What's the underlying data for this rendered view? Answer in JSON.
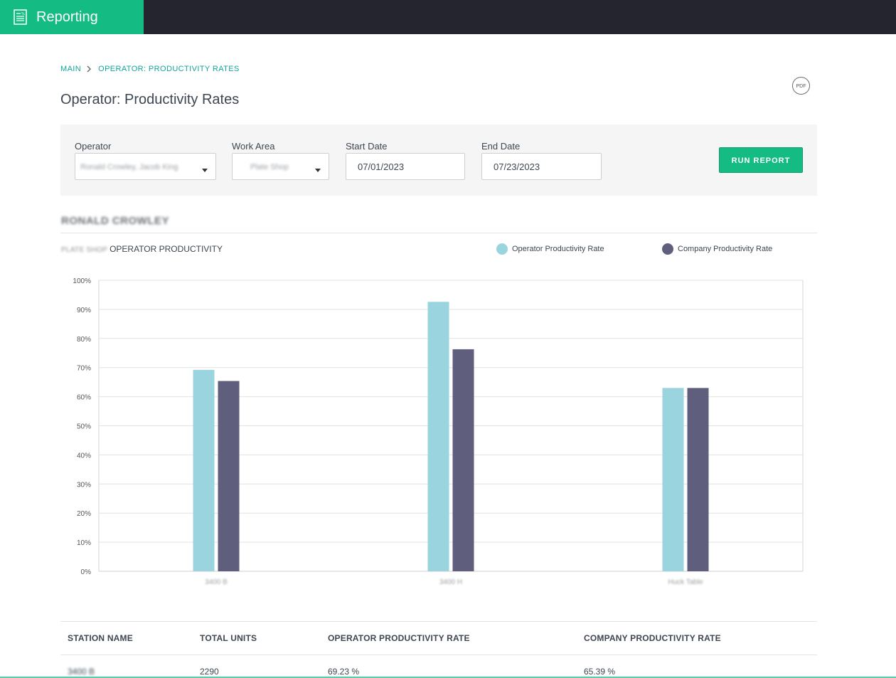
{
  "app": {
    "title": "Reporting",
    "accent": "#14bb82",
    "topbar_color": "#25252f"
  },
  "breadcrumb": {
    "items": [
      "MAIN",
      "OPERATOR: PRODUCTIVITY RATES"
    ]
  },
  "page": {
    "title": "Operator: Productivity Rates",
    "pdf_label": "PDF"
  },
  "filters": {
    "operator": {
      "label": "Operator",
      "value": "Ronald Crowley, Jacob King"
    },
    "work_area": {
      "label": "Work Area",
      "value": "Plate Shop"
    },
    "start_date": {
      "label": "Start Date",
      "value": "07/01/2023"
    },
    "end_date": {
      "label": "End Date",
      "value": "07/23/2023"
    },
    "run_label": "RUN REPORT"
  },
  "report": {
    "operator_name": "RONALD CROWLEY",
    "chart_title_prefix": "PLATE SHOP",
    "chart_title": "OPERATOR PRODUCTIVITY"
  },
  "chart_data": {
    "type": "bar",
    "categories": [
      "3400 B",
      "3400 H",
      "Huck Table"
    ],
    "series": [
      {
        "name": "Operator Productivity Rate",
        "values": [
          69.23,
          92.6,
          63.0
        ],
        "color": "#9ad4de"
      },
      {
        "name": "Company Productivity Rate",
        "values": [
          65.39,
          76.3,
          63.0
        ],
        "color": "#5f5f7d"
      }
    ],
    "ylim": [
      0,
      100
    ],
    "yticks": [
      "0%",
      "10%",
      "20%",
      "30%",
      "40%",
      "50%",
      "60%",
      "70%",
      "80%",
      "90%",
      "100%"
    ],
    "grid": true,
    "legend": "top-right"
  },
  "table": {
    "headers": [
      "STATION NAME",
      "TOTAL UNITS",
      "OPERATOR PRODUCTIVITY RATE",
      "COMPANY PRODUCTIVITY RATE"
    ],
    "rows": [
      {
        "station": "3400 B",
        "units": "2290",
        "operator_rate": "69.23 %",
        "company_rate": "65.39 %"
      }
    ]
  }
}
